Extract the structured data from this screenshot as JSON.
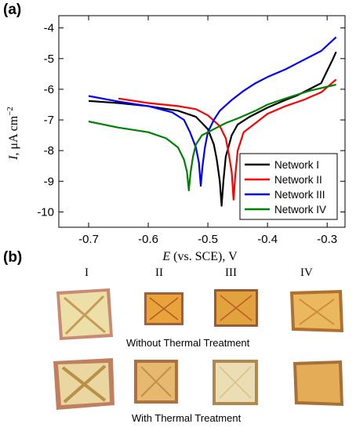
{
  "panel_labels": {
    "a": "(a)",
    "b": "(b)"
  },
  "chart_data": {
    "type": "line",
    "xlabel_var": "E",
    "xlabel_rest": " (vs. SCE), V",
    "ylabel_var": "I",
    "ylabel_rest": ", μA cm",
    "ylabel_sup": "−2",
    "xlim": [
      -0.75,
      -0.27
    ],
    "ylim": [
      -10.5,
      -3.6
    ],
    "xticks": [
      -0.7,
      -0.6,
      -0.5,
      -0.4,
      -0.3
    ],
    "xtick_labels": [
      "-0.7",
      "-0.6",
      "-0.5",
      "-0.4",
      "-0.3"
    ],
    "yticks": [
      -10,
      -9,
      -8,
      -7,
      -6,
      -5,
      -4
    ],
    "ytick_labels": [
      "-10",
      "-9",
      "-8",
      "-7",
      "-6",
      "-5",
      "-4"
    ],
    "grid": false,
    "legend_position": "bottom-right",
    "series": [
      {
        "name": "Network I",
        "color": "#000000",
        "points": [
          [
            -0.7,
            -6.38
          ],
          [
            -0.65,
            -6.45
          ],
          [
            -0.6,
            -6.55
          ],
          [
            -0.55,
            -6.7
          ],
          [
            -0.52,
            -6.9
          ],
          [
            -0.5,
            -7.3
          ],
          [
            -0.49,
            -7.8
          ],
          [
            -0.485,
            -8.3
          ],
          [
            -0.48,
            -9.0
          ],
          [
            -0.477,
            -9.8
          ],
          [
            -0.474,
            -9.0
          ],
          [
            -0.47,
            -8.2
          ],
          [
            -0.46,
            -7.5
          ],
          [
            -0.45,
            -7.15
          ],
          [
            -0.43,
            -6.9
          ],
          [
            -0.4,
            -6.6
          ],
          [
            -0.37,
            -6.35
          ],
          [
            -0.35,
            -6.2
          ],
          [
            -0.33,
            -6.0
          ],
          [
            -0.31,
            -5.8
          ],
          [
            -0.3,
            -5.4
          ],
          [
            -0.29,
            -5.0
          ],
          [
            -0.285,
            -4.78
          ]
        ]
      },
      {
        "name": "Network II",
        "color": "#ff0000",
        "points": [
          [
            -0.65,
            -6.3
          ],
          [
            -0.6,
            -6.45
          ],
          [
            -0.55,
            -6.55
          ],
          [
            -0.52,
            -6.65
          ],
          [
            -0.5,
            -6.85
          ],
          [
            -0.48,
            -7.2
          ],
          [
            -0.47,
            -7.6
          ],
          [
            -0.465,
            -8.1
          ],
          [
            -0.46,
            -8.7
          ],
          [
            -0.457,
            -9.6
          ],
          [
            -0.454,
            -8.8
          ],
          [
            -0.45,
            -8.0
          ],
          [
            -0.44,
            -7.4
          ],
          [
            -0.42,
            -7.1
          ],
          [
            -0.4,
            -6.8
          ],
          [
            -0.37,
            -6.55
          ],
          [
            -0.34,
            -6.35
          ],
          [
            -0.31,
            -6.1
          ],
          [
            -0.285,
            -5.68
          ]
        ]
      },
      {
        "name": "Network III",
        "color": "#0000ff",
        "points": [
          [
            -0.7,
            -6.22
          ],
          [
            -0.65,
            -6.4
          ],
          [
            -0.6,
            -6.55
          ],
          [
            -0.56,
            -6.75
          ],
          [
            -0.54,
            -7.0
          ],
          [
            -0.53,
            -7.4
          ],
          [
            -0.52,
            -7.9
          ],
          [
            -0.515,
            -8.4
          ],
          [
            -0.512,
            -9.15
          ],
          [
            -0.509,
            -8.5
          ],
          [
            -0.505,
            -7.9
          ],
          [
            -0.5,
            -7.4
          ],
          [
            -0.49,
            -7.0
          ],
          [
            -0.48,
            -6.7
          ],
          [
            -0.46,
            -6.35
          ],
          [
            -0.44,
            -6.05
          ],
          [
            -0.42,
            -5.8
          ],
          [
            -0.4,
            -5.6
          ],
          [
            -0.37,
            -5.35
          ],
          [
            -0.34,
            -5.05
          ],
          [
            -0.31,
            -4.75
          ],
          [
            -0.285,
            -4.3
          ]
        ]
      },
      {
        "name": "Network IV",
        "color": "#008000",
        "points": [
          [
            -0.7,
            -7.05
          ],
          [
            -0.65,
            -7.25
          ],
          [
            -0.6,
            -7.4
          ],
          [
            -0.57,
            -7.6
          ],
          [
            -0.55,
            -7.9
          ],
          [
            -0.54,
            -8.3
          ],
          [
            -0.535,
            -8.7
          ],
          [
            -0.532,
            -9.3
          ],
          [
            -0.529,
            -8.7
          ],
          [
            -0.525,
            -8.2
          ],
          [
            -0.52,
            -7.8
          ],
          [
            -0.51,
            -7.5
          ],
          [
            -0.49,
            -7.3
          ],
          [
            -0.47,
            -7.1
          ],
          [
            -0.45,
            -6.95
          ],
          [
            -0.42,
            -6.7
          ],
          [
            -0.4,
            -6.5
          ],
          [
            -0.37,
            -6.3
          ],
          [
            -0.33,
            -6.05
          ],
          [
            -0.285,
            -5.85
          ]
        ]
      }
    ]
  },
  "photos": {
    "column_labels": [
      "I",
      "II",
      "III",
      "IV"
    ],
    "row_captions": [
      "Without Thermal Treatment",
      "With Thermal Treatment"
    ],
    "samples": [
      {
        "name": "I-without",
        "fill": "#e9dca0",
        "edge": "#c17a68"
      },
      {
        "name": "II-without",
        "fill": "#e8a43a",
        "edge": "#a06030"
      },
      {
        "name": "III-without",
        "fill": "#e2a23e",
        "edge": "#9a5a34"
      },
      {
        "name": "IV-without",
        "fill": "#e8b55a",
        "edge": "#b07030"
      },
      {
        "name": "I-with",
        "fill": "#e8d29a",
        "edge": "#c08060"
      },
      {
        "name": "II-with",
        "fill": "#e4b46a",
        "edge": "#b07040"
      },
      {
        "name": "III-with",
        "fill": "#eadbb0",
        "edge": "#b08850"
      },
      {
        "name": "IV-with",
        "fill": "#e2a850",
        "edge": "#a87038"
      }
    ]
  }
}
